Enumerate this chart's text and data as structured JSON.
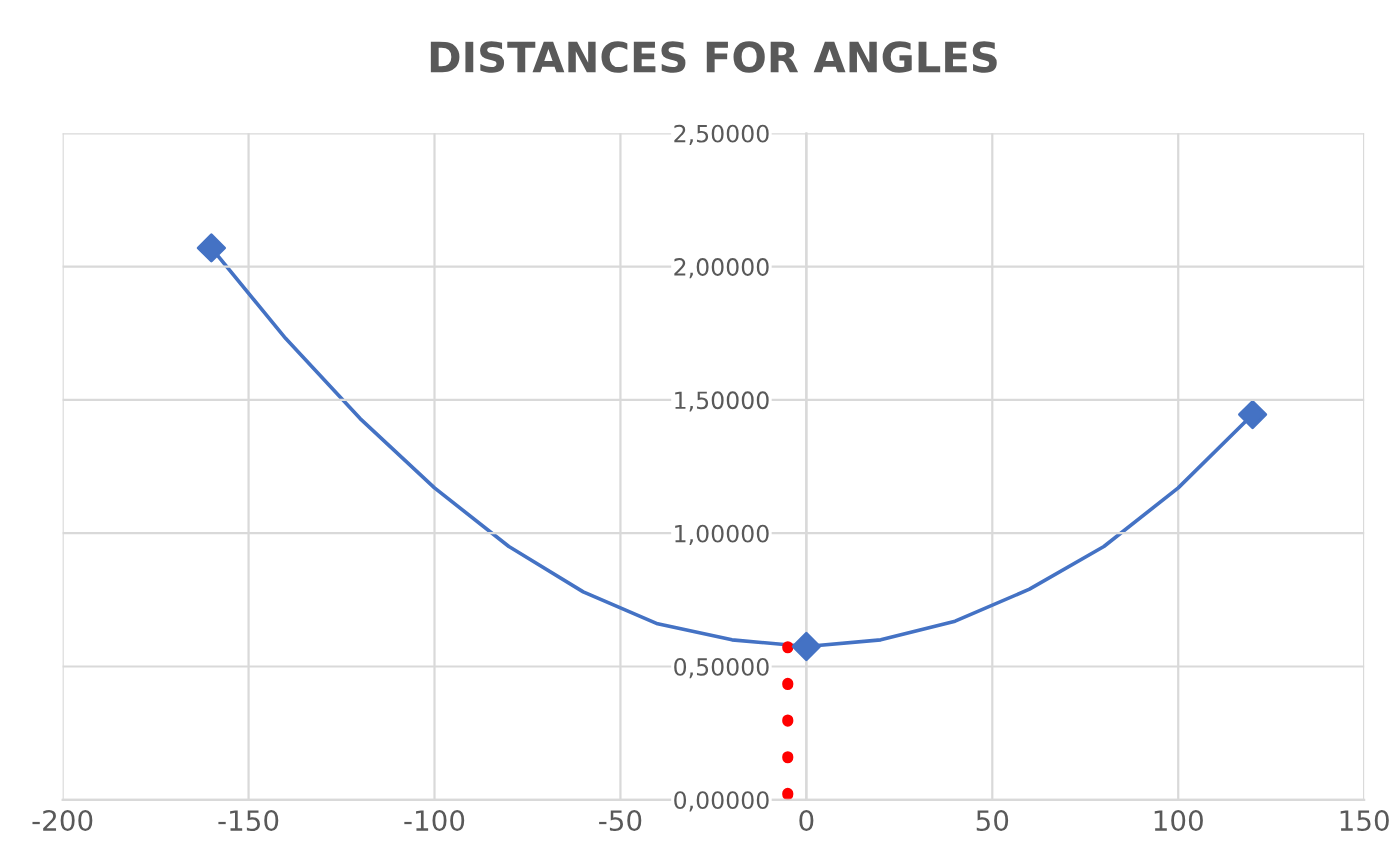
{
  "chart_data": {
    "type": "scatter",
    "title": "DISTANCES FOR ANGLES",
    "xlim": [
      -200,
      150
    ],
    "xticks": [
      -200,
      -150,
      -100,
      -50,
      0,
      50,
      100,
      150
    ],
    "ylim": [
      0,
      2.5
    ],
    "yticks": [
      {
        "value": 0,
        "label": "0,00000"
      },
      {
        "value": 0.5,
        "label": "0,50000"
      },
      {
        "value": 1,
        "label": "1,00000"
      },
      {
        "value": 1.5,
        "label": "1,50000"
      },
      {
        "value": 2,
        "label": "2,00000"
      },
      {
        "value": 2.5,
        "label": "2,50000"
      }
    ],
    "grid": true,
    "legend": false,
    "series": [
      {
        "type": "line",
        "color": "#4472c4",
        "marker": "none",
        "line_style": "solid",
        "x": [
          -160,
          -140,
          -120,
          -100,
          -80,
          -60,
          -40,
          -20,
          0,
          20,
          40,
          60,
          80,
          100,
          120
        ],
        "values": [
          2.07,
          1.73,
          1.43,
          1.17,
          0.95,
          0.78,
          0.66,
          0.6,
          0.575,
          0.6,
          0.67,
          0.79,
          0.95,
          1.17,
          1.445
        ]
      },
      {
        "color": "#4472c4",
        "marker": "diamond",
        "x": [
          -160,
          0,
          120
        ],
        "values": [
          2.07,
          0.575,
          1.445
        ]
      },
      {
        "type": "line",
        "color": "#ff0000",
        "marker": "none",
        "line_style": "dotted",
        "x": [
          -5,
          -5
        ],
        "values": [
          0.02,
          0.58
        ]
      }
    ]
  }
}
